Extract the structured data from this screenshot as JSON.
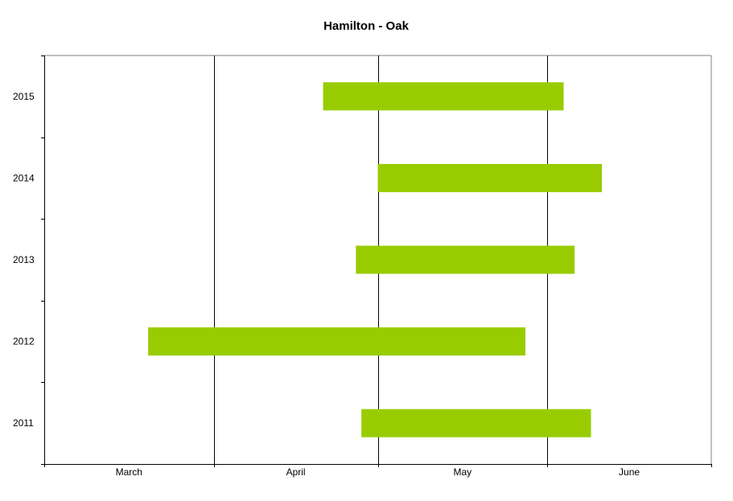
{
  "chart_data": {
    "type": "bar",
    "orientation": "horizontal",
    "subtype": "floating-range",
    "title": "Hamilton - Oak",
    "xlabel": "",
    "ylabel": "",
    "x_axis": {
      "type": "date",
      "range": [
        "03-01",
        "07-01"
      ],
      "tick_labels": [
        "March",
        "April",
        "May",
        "June"
      ],
      "gridlines_at": [
        "04-01",
        "05-01",
        "06-01"
      ]
    },
    "categories": [
      "2015",
      "2014",
      "2013",
      "2012",
      "2011"
    ],
    "series": [
      {
        "color": "#99cc00",
        "ranges": [
          {
            "category": "2015",
            "start": "04-21",
            "end": "06-04"
          },
          {
            "category": "2014",
            "start": "05-01",
            "end": "06-11"
          },
          {
            "category": "2013",
            "start": "04-27",
            "end": "06-06"
          },
          {
            "category": "2012",
            "start": "03-20",
            "end": "05-28"
          },
          {
            "category": "2011",
            "start": "04-28",
            "end": "06-09"
          }
        ]
      }
    ],
    "grid": true,
    "legend": "none",
    "colors": {
      "bar": "#99cc00",
      "axis": "#000000",
      "frame": "#808080",
      "gridline": "#000000"
    }
  }
}
